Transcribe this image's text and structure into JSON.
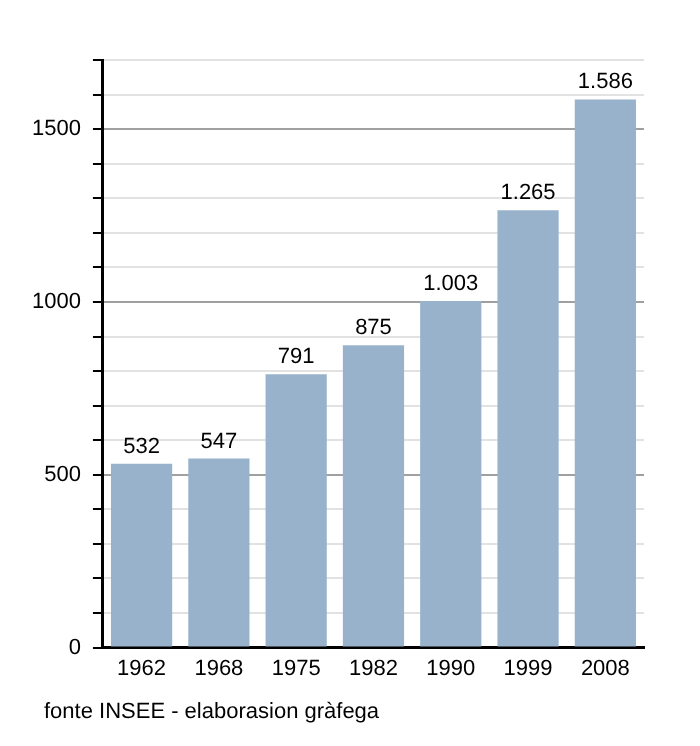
{
  "chart_data": {
    "type": "bar",
    "categories": [
      "1962",
      "1968",
      "1975",
      "1982",
      "1990",
      "1999",
      "2008"
    ],
    "values": [
      532,
      547,
      791,
      875,
      1003,
      1265,
      1586
    ],
    "value_labels": [
      "532",
      "547",
      "791",
      "875",
      "1.003",
      "1.265",
      "1.586"
    ],
    "color": "#98b2cc",
    "ylim": [
      0,
      1700
    ],
    "yticks": [
      0,
      {
        "value": 100,
        "label": null
      },
      {
        "value": 200,
        "label": null
      },
      {
        "value": 300,
        "label": null
      },
      {
        "value": 400,
        "label": null
      },
      500,
      {
        "value": 600,
        "label": null
      },
      {
        "value": 700,
        "label": null
      },
      {
        "value": 800,
        "label": null
      },
      {
        "value": 900,
        "label": null
      },
      1000,
      {
        "value": 1100,
        "label": null
      },
      {
        "value": 1200,
        "label": null
      },
      {
        "value": 1300,
        "label": null
      },
      {
        "value": 1400,
        "label": null
      },
      1500,
      {
        "value": 1600,
        "label": null
      },
      {
        "value": 1700,
        "label": null
      }
    ],
    "grid": "y",
    "legend": false,
    "annotations": [
      "fonte INSEE - elaborasion gràfega"
    ]
  }
}
